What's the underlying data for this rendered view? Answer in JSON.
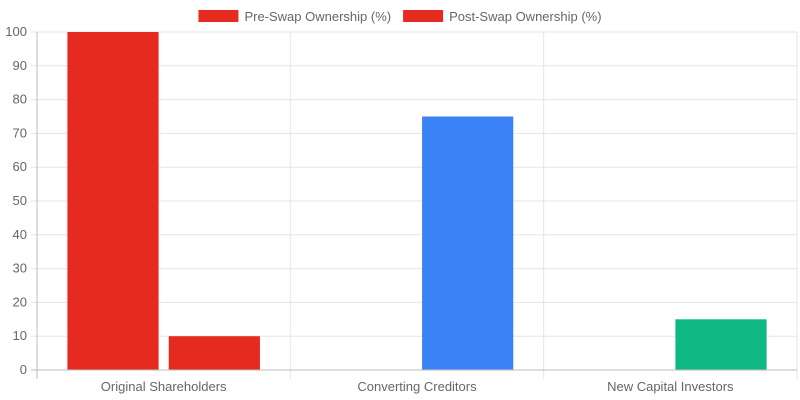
{
  "chart_data": {
    "type": "bar",
    "categories": [
      "Original Shareholders",
      "Converting Creditors",
      "New Capital Investors"
    ],
    "series": [
      {
        "name": "Pre-Swap Ownership (%)",
        "values": [
          100,
          0,
          0
        ]
      },
      {
        "name": "Post-Swap Ownership (%)",
        "values": [
          10,
          75,
          15
        ]
      }
    ],
    "bar_colors": [
      [
        "#e52b1f",
        "#e52b1f"
      ],
      [
        "#e52b1f",
        "#3b82f6"
      ],
      [
        "#e52b1f",
        "#10b981"
      ]
    ],
    "legend_colors": [
      "#e52b1f",
      "#e52b1f"
    ],
    "ylim": [
      0,
      100
    ],
    "yticks": [
      0,
      10,
      20,
      30,
      40,
      50,
      60,
      70,
      80,
      90,
      100
    ],
    "legend_position": "top",
    "grid": true
  }
}
